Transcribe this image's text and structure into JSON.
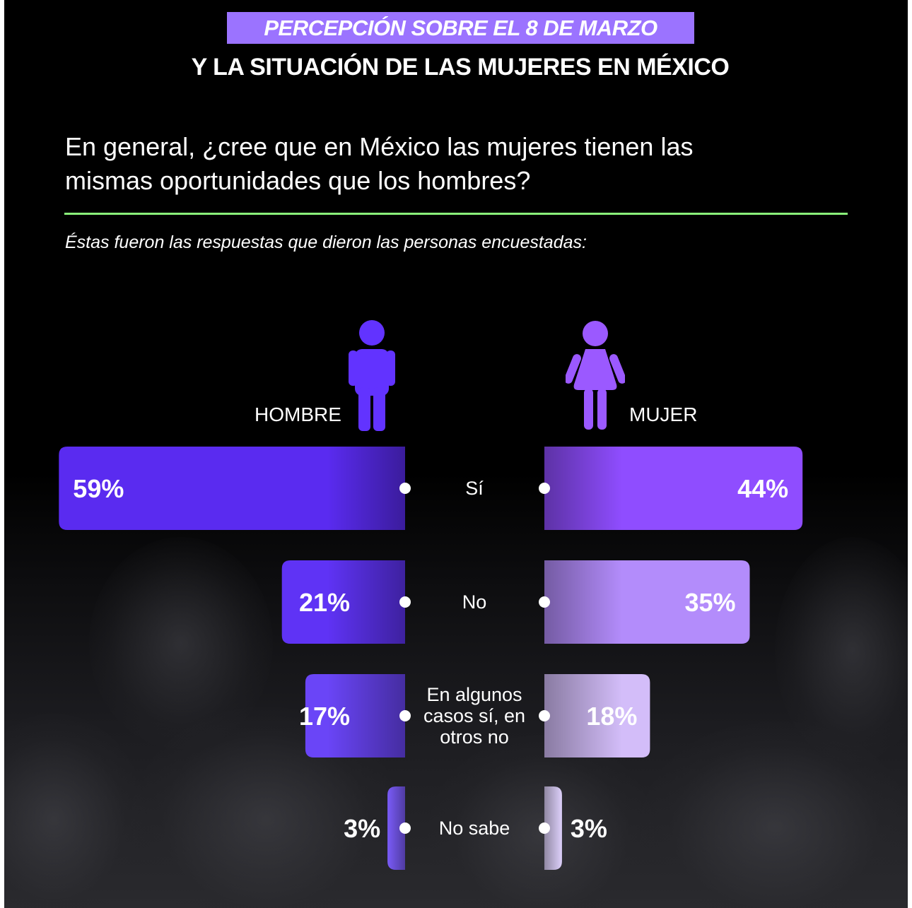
{
  "header": {
    "badge": "PERCEPCIÓN SOBRE EL 8 DE MARZO",
    "title": "Y LA SITUACIÓN DE LAS MUJERES EN MÉXICO"
  },
  "question": {
    "line1": "En general, ¿cree que en México las mujeres tienen las",
    "line2": "mismas oportunidades que los hombres?"
  },
  "subtitle": "Éstas fueron las respuestas que dieron las personas encuestadas:",
  "legend": {
    "male": {
      "label": "HOMBRE",
      "icon": "male-person-icon",
      "color": "#6233ff"
    },
    "female": {
      "label": "MUJER",
      "icon": "female-person-icon",
      "color": "#9b59ff"
    }
  },
  "colors": {
    "accent_line": "#8af27a",
    "badge": "#9b73ff",
    "male_bars": [
      "#5a2bf0",
      "#5f33f5",
      "#6a45f7",
      "#7a5bf8"
    ],
    "female_bars": [
      "#8f4dff",
      "#b38cfb",
      "#d3bdf9",
      "#ddd0fa"
    ]
  },
  "chart_data": {
    "type": "bar",
    "orientation": "horizontal-diverging",
    "categories": [
      [
        "Sí"
      ],
      [
        "No"
      ],
      [
        "En algunos",
        "casos sí, en",
        "otros no"
      ],
      [
        "No sabe"
      ]
    ],
    "series": [
      {
        "name": "HOMBRE",
        "values": [
          59,
          21,
          17,
          3
        ],
        "labels": [
          "59%",
          "21%",
          "17%",
          "3%"
        ]
      },
      {
        "name": "MUJER",
        "values": [
          44,
          35,
          18,
          3
        ],
        "labels": [
          "44%",
          "35%",
          "18%",
          "3%"
        ]
      }
    ],
    "unit": "%"
  }
}
